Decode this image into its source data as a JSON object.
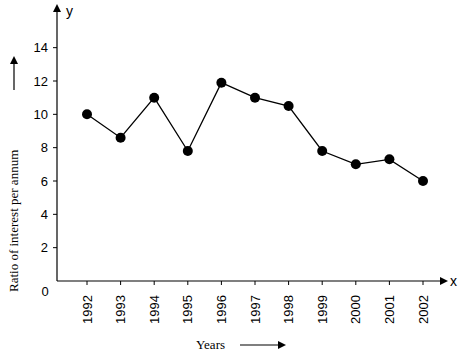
{
  "chart_data": {
    "type": "line",
    "x_label": "Years",
    "y_label": "Ratio of interest per annum",
    "annotations": [
      "y",
      "x"
    ],
    "categories": [
      "1992",
      "1993",
      "1994",
      "1995",
      "1996",
      "1997",
      "1998",
      "1999",
      "2000",
      "2001",
      "2002"
    ],
    "values": [
      10,
      8.6,
      11,
      7.8,
      11.9,
      11,
      10.5,
      7.8,
      7,
      7.3,
      6
    ],
    "color": "#000000",
    "marker": "circle",
    "ylim": [
      0,
      16.5
    ],
    "yticks": [
      0,
      2,
      4,
      6,
      8,
      10,
      12,
      14
    ],
    "grid": false
  }
}
